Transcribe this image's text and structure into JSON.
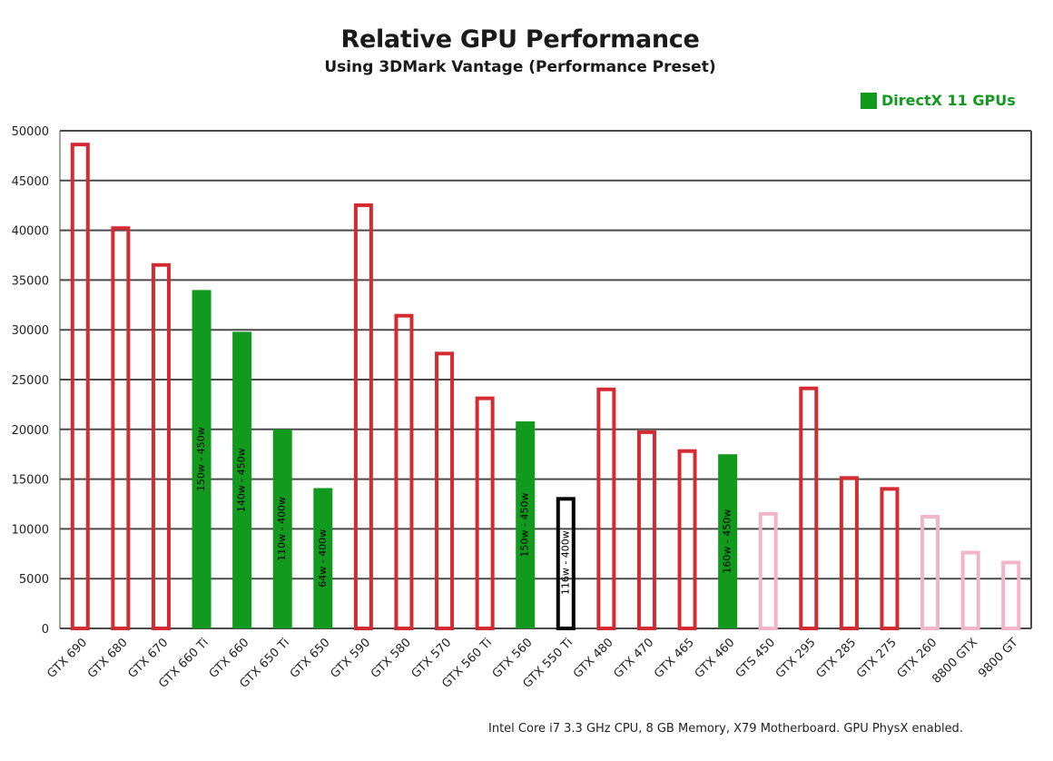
{
  "chart_data": {
    "type": "bar",
    "title": "Relative GPU Performance",
    "subtitle": "Using 3DMark Vantage (Performance Preset)",
    "legend": [
      {
        "label": "DirectX 11 GPUs",
        "color": "#119a1e"
      }
    ],
    "legend_placement": "top-right",
    "footnote": "Intel Core i7 3.3 GHz CPU, 8 GB Memory, X79 Motherboard. GPU PhysX enabled.",
    "ylim": [
      0,
      50000
    ],
    "yticks": [
      0,
      5000,
      10000,
      15000,
      20000,
      25000,
      30000,
      35000,
      40000,
      45000,
      50000
    ],
    "grid": true,
    "categories": [
      "GTX 690",
      "GTX 680",
      "GTX 670",
      "GTX 660 Ti",
      "GTX 660",
      "GTX 650 Ti",
      "GTX 650",
      "GTX 590",
      "GTX 580",
      "GTX 570",
      "GTX 560 Ti",
      "GTX 560",
      "GTX 550 Ti",
      "GTX 480",
      "GTX 470",
      "GTX 465",
      "GTX 460",
      "GTS 450",
      "GTX 295",
      "GTX 285",
      "GTX 275",
      "GTX 260",
      "8800 GTX",
      "9800 GT"
    ],
    "values": [
      48800,
      40400,
      36700,
      34000,
      29800,
      20000,
      14100,
      42700,
      31600,
      27800,
      23300,
      20800,
      13200,
      24200,
      19900,
      18000,
      17500,
      11700,
      24300,
      15300,
      14200,
      11400,
      7800,
      6800
    ],
    "styles": [
      "red-outline",
      "red-outline",
      "red-outline",
      "green",
      "green",
      "green",
      "green",
      "red-outline",
      "red-outline",
      "red-outline",
      "red-outline",
      "green",
      "black-outline",
      "red-outline",
      "red-outline",
      "red-outline",
      "green",
      "pink-outline",
      "red-outline",
      "red-outline",
      "red-outline",
      "pink-outline",
      "pink-outline",
      "pink-outline"
    ],
    "bar_labels": [
      "",
      "",
      "",
      "150w - 450w",
      "140w - 450w",
      "110w - 400w",
      "64w - 400w",
      "",
      "",
      "",
      "",
      "150w - 450w",
      "116w - 400w",
      "",
      "",
      "",
      "160w - 450w",
      "",
      "",
      "",
      "",
      "",
      "",
      ""
    ],
    "colors": {
      "red": "#d42a32",
      "green": "#119a1e",
      "pink": "#f2b4c8",
      "black": "#000000",
      "grid": "#4a4a4a"
    }
  }
}
